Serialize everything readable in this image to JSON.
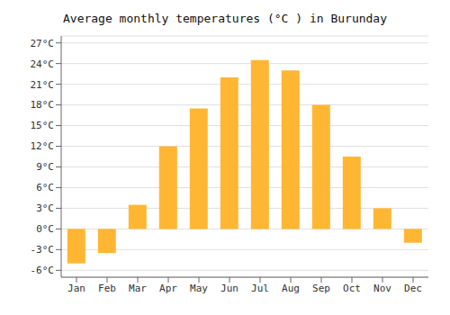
{
  "chart_data": {
    "type": "bar",
    "title": "Average monthly temperatures (°C ) in Burunday",
    "categories": [
      "Jan",
      "Feb",
      "Mar",
      "Apr",
      "May",
      "Jun",
      "Jul",
      "Aug",
      "Sep",
      "Oct",
      "Nov",
      "Dec"
    ],
    "values": [
      -5.0,
      -3.5,
      3.5,
      12.0,
      17.5,
      22.0,
      24.5,
      23.0,
      18.0,
      10.5,
      3.0,
      -2.0
    ],
    "color": "#FFB733",
    "ylim": [
      -7,
      28
    ],
    "yticks": [
      {
        "value": -6,
        "label": "-6°C"
      },
      {
        "value": -3,
        "label": "-3°C"
      },
      {
        "value": 0,
        "label": "0°C"
      },
      {
        "value": 3,
        "label": "3°C"
      },
      {
        "value": 6,
        "label": "6°C"
      },
      {
        "value": 9,
        "label": "9°C"
      },
      {
        "value": 12,
        "label": "12°C"
      },
      {
        "value": 15,
        "label": "15°C"
      },
      {
        "value": 18,
        "label": "18°C"
      },
      {
        "value": 21,
        "label": "21°C"
      },
      {
        "value": 24,
        "label": "24°C"
      },
      {
        "value": 27,
        "label": "27°C"
      }
    ],
    "grid": true
  }
}
